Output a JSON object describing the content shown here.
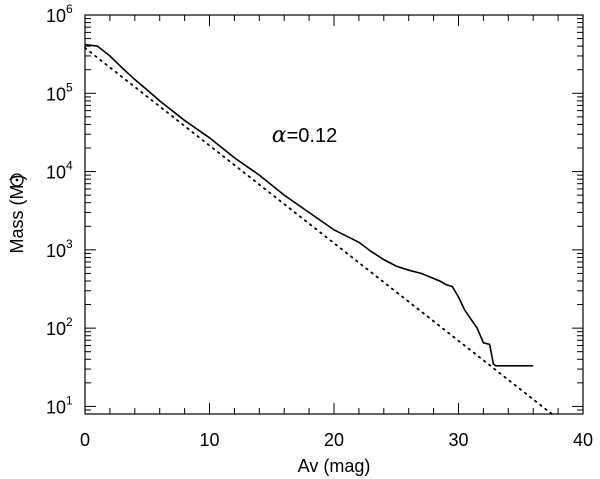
{
  "chart_data": {
    "type": "line",
    "title": "",
    "xlabel": "Av (mag)",
    "ylabel_prefix": "Mass (M",
    "ylabel_suffix": ")",
    "ylabel_symbol": "sun-symbol",
    "xlim": [
      0,
      40
    ],
    "ylim": [
      8,
      1000000
    ],
    "yscale": "log",
    "xticks": [
      0,
      10,
      20,
      30,
      40
    ],
    "xtick_labels": [
      "0",
      "10",
      "20",
      "30",
      "40"
    ],
    "yticks": [
      10,
      100,
      1000,
      10000,
      100000,
      1000000
    ],
    "ytick_base": "10",
    "ytick_exponents": [
      "1",
      "2",
      "3",
      "4",
      "5",
      "6"
    ],
    "grid": false,
    "legend": "none",
    "annotation": {
      "symbol": "α",
      "text": "=0.12",
      "x": 15,
      "y": 24000
    },
    "series": [
      {
        "style": "solid",
        "x": [
          0,
          1,
          2,
          3,
          4,
          5,
          6,
          8,
          10,
          12,
          14,
          16,
          18,
          20,
          21,
          22,
          23,
          24,
          25,
          26,
          27,
          28,
          28.5,
          29,
          29.5,
          30,
          30.5,
          31,
          31.5,
          32,
          32.5,
          32.8,
          33,
          34,
          35,
          36
        ],
        "y": [
          420000,
          400000,
          300000,
          210000,
          150000,
          110000,
          80000,
          45000,
          27000,
          15000,
          9000,
          5000,
          3000,
          1800,
          1500,
          1250,
          950,
          750,
          620,
          550,
          500,
          430,
          400,
          360,
          340,
          250,
          170,
          130,
          100,
          65,
          62,
          35,
          33,
          33,
          33,
          33
        ]
      },
      {
        "style": "dotted",
        "x": [
          0,
          37.5
        ],
        "y": [
          380000,
          8
        ]
      }
    ]
  }
}
